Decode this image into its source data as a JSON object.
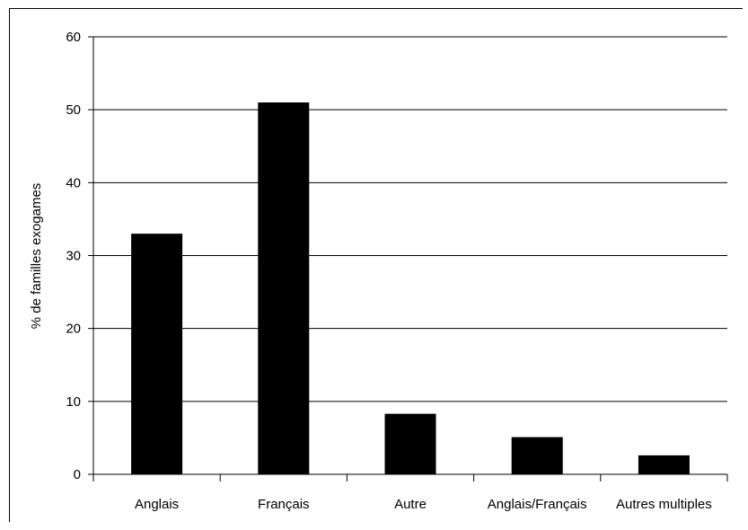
{
  "chart_data": {
    "type": "bar",
    "title": "",
    "xlabel": "",
    "ylabel": "% de familles exogames",
    "categories": [
      "Anglais",
      "Français",
      "Autre",
      "Anglais/Français",
      "Autres multiples"
    ],
    "values": [
      33,
      51,
      8.3,
      5.1,
      2.6
    ],
    "ylim": [
      0,
      60
    ],
    "yticks": [
      "0",
      "10",
      "20",
      "30",
      "40",
      "50",
      "60"
    ],
    "grid": true,
    "bar_color": "#000000"
  }
}
